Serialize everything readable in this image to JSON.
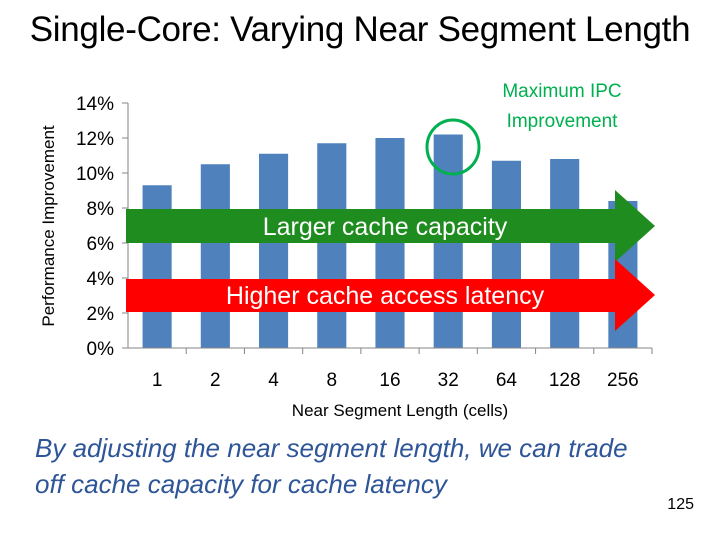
{
  "slide": {
    "title": "Single-Core: Varying Near Segment Length",
    "caption": "By adjusting the near segment length, we can trade off cache capacity for cache latency",
    "page_number": "125"
  },
  "annotations": {
    "max_label_line1": "Maximum IPC",
    "max_label_line2": "Improvement",
    "green_arrow_label": "Larger cache capacity",
    "red_arrow_label": "Higher cache access latency",
    "green_color": "#1e8c1e",
    "red_color": "#ff0000",
    "highlight_color": "#00b050"
  },
  "chart_data": {
    "type": "bar",
    "title": "",
    "xlabel": "Near Segment Length (cells)",
    "ylabel": "Performance Improvement",
    "categories": [
      "1",
      "2",
      "4",
      "8",
      "16",
      "32",
      "64",
      "128",
      "256"
    ],
    "values": [
      9.3,
      10.5,
      11.1,
      11.7,
      12.0,
      12.2,
      10.7,
      10.8,
      8.4
    ],
    "yticks": [
      "0%",
      "2%",
      "4%",
      "6%",
      "8%",
      "10%",
      "12%",
      "14%"
    ],
    "ylim": [
      0,
      14
    ],
    "bar_color": "#4f81bd",
    "grid": false,
    "legend": "none",
    "highlight_category": "32"
  }
}
